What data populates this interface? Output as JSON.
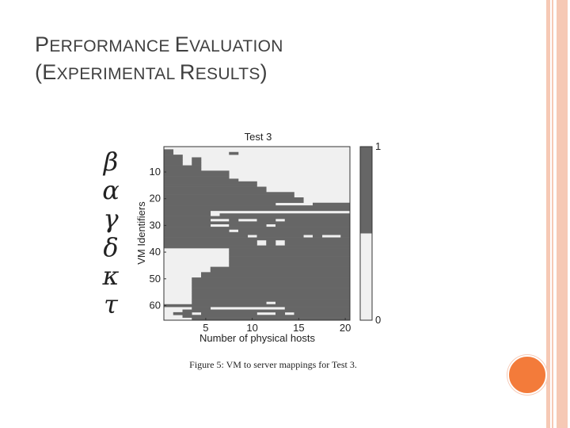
{
  "slide": {
    "title_line1_parts": [
      "P",
      "ERFORMANCE ",
      "E",
      "VALUATION"
    ],
    "title_line2_parts": [
      "(E",
      "XPERIMENTAL ",
      "R",
      "ESULTS",
      ")"
    ],
    "greek_symbols": [
      "β",
      "α",
      "γ",
      "δ",
      "κ",
      "τ"
    ],
    "caption": "Figure 5: VM to server mappings for Test 3.",
    "colors": {
      "accent_circle": "#f37b3a",
      "decor_stripes": "#f6c9b5",
      "title_text": "#404040"
    }
  },
  "chart_data": {
    "type": "heatmap",
    "title": "Test 3",
    "xlabel": "Number of physical hosts",
    "ylabel": "VM Identifiers",
    "x_ticks": [
      5,
      10,
      15,
      20
    ],
    "y_ticks": [
      10,
      20,
      30,
      40,
      50,
      60
    ],
    "x_range": [
      1,
      20
    ],
    "y_range": [
      1,
      65
    ],
    "colorbar_ticks": [
      1,
      0
    ],
    "colors": {
      "value_1": "#666666",
      "value_0": "#f0f0f0"
    },
    "note": "Cell value 1 = dark, 0 = light. Each row = VM id, each column = number of hosts.",
    "row_segments": [
      [
        [
          1,
          0,
          0,
          0,
          0,
          0,
          0,
          0,
          0,
          0,
          0,
          0,
          0,
          0,
          0,
          0,
          0,
          0,
          0,
          0
        ]
      ],
      "rows below use run-length encoding: list of [start_col, end_col, value]"
    ],
    "rows_rle": [
      [
        [
          1,
          20,
          0
        ]
      ],
      [
        [
          1,
          1,
          1
        ],
        [
          2,
          20,
          0
        ]
      ],
      [
        [
          1,
          1,
          1
        ],
        [
          2,
          7,
          0
        ],
        [
          8,
          8,
          1
        ],
        [
          9,
          20,
          0
        ]
      ],
      [
        [
          1,
          2,
          1
        ],
        [
          3,
          20,
          0
        ]
      ],
      [
        [
          1,
          2,
          1
        ],
        [
          3,
          3,
          0
        ],
        [
          4,
          4,
          1
        ],
        [
          5,
          20,
          0
        ]
      ],
      [
        [
          1,
          2,
          1
        ],
        [
          3,
          3,
          0
        ],
        [
          4,
          4,
          1
        ],
        [
          5,
          20,
          0
        ]
      ],
      [
        [
          1,
          2,
          1
        ],
        [
          3,
          3,
          0
        ],
        [
          4,
          4,
          1
        ],
        [
          5,
          20,
          0
        ]
      ],
      [
        [
          1,
          4,
          1
        ],
        [
          5,
          20,
          0
        ]
      ],
      [
        [
          1,
          4,
          1
        ],
        [
          5,
          20,
          0
        ]
      ],
      [
        [
          1,
          7,
          1
        ],
        [
          8,
          20,
          0
        ]
      ],
      [
        [
          1,
          7,
          1
        ],
        [
          8,
          20,
          0
        ]
      ],
      [
        [
          1,
          7,
          1
        ],
        [
          8,
          20,
          0
        ]
      ],
      [
        [
          1,
          8,
          1
        ],
        [
          9,
          20,
          0
        ]
      ],
      [
        [
          1,
          10,
          1
        ],
        [
          11,
          20,
          0
        ]
      ],
      [
        [
          1,
          10,
          1
        ],
        [
          11,
          20,
          0
        ]
      ],
      [
        [
          1,
          11,
          1
        ],
        [
          12,
          20,
          0
        ]
      ],
      [
        [
          1,
          11,
          1
        ],
        [
          12,
          20,
          0
        ]
      ],
      [
        [
          1,
          14,
          1
        ],
        [
          15,
          20,
          0
        ]
      ],
      [
        [
          1,
          14,
          1
        ],
        [
          15,
          20,
          0
        ]
      ],
      [
        [
          1,
          15,
          1
        ],
        [
          16,
          20,
          0
        ]
      ],
      [
        [
          1,
          15,
          1
        ],
        [
          16,
          20,
          0
        ]
      ],
      [
        [
          1,
          12,
          1
        ],
        [
          13,
          16,
          0
        ],
        [
          17,
          20,
          1
        ]
      ],
      [
        [
          1,
          20,
          1
        ]
      ],
      [
        [
          1,
          20,
          1
        ]
      ],
      [
        [
          1,
          3,
          1
        ],
        [
          4,
          20,
          0
        ],
        [
          4,
          5,
          1
        ]
      ],
      [
        [
          1,
          5,
          1
        ],
        [
          6,
          6,
          0
        ],
        [
          7,
          20,
          1
        ]
      ],
      [
        [
          1,
          20,
          1
        ]
      ],
      [
        [
          1,
          5,
          1
        ],
        [
          6,
          7,
          0
        ],
        [
          8,
          8,
          1
        ],
        [
          9,
          10,
          0
        ],
        [
          11,
          12,
          1
        ],
        [
          13,
          13,
          0
        ],
        [
          14,
          20,
          1
        ]
      ],
      [
        [
          1,
          20,
          1
        ]
      ],
      [
        [
          1,
          5,
          1
        ],
        [
          6,
          7,
          0
        ],
        [
          8,
          11,
          1
        ],
        [
          12,
          12,
          0
        ],
        [
          13,
          20,
          1
        ]
      ],
      [
        [
          1,
          20,
          1
        ]
      ],
      [
        [
          1,
          7,
          1
        ],
        [
          8,
          8,
          0
        ],
        [
          9,
          20,
          1
        ]
      ],
      [
        [
          1,
          20,
          1
        ]
      ],
      [
        [
          1,
          9,
          1
        ],
        [
          10,
          10,
          0
        ],
        [
          11,
          15,
          1
        ],
        [
          16,
          16,
          0
        ],
        [
          17,
          17,
          1
        ],
        [
          18,
          19,
          0
        ],
        [
          20,
          20,
          1
        ]
      ],
      [
        [
          1,
          20,
          1
        ]
      ],
      [
        [
          1,
          10,
          1
        ],
        [
          11,
          11,
          0
        ],
        [
          12,
          12,
          1
        ],
        [
          13,
          13,
          0
        ],
        [
          14,
          20,
          1
        ]
      ],
      [
        [
          1,
          10,
          1
        ],
        [
          11,
          11,
          0
        ],
        [
          12,
          12,
          1
        ],
        [
          13,
          13,
          0
        ],
        [
          14,
          20,
          1
        ]
      ],
      [
        [
          1,
          20,
          1
        ]
      ],
      [
        [
          1,
          7,
          0
        ],
        [
          8,
          20,
          1
        ]
      ],
      [
        [
          1,
          7,
          0
        ],
        [
          8,
          20,
          1
        ]
      ],
      [
        [
          1,
          7,
          0
        ],
        [
          8,
          20,
          1
        ]
      ],
      [
        [
          1,
          7,
          0
        ],
        [
          8,
          20,
          1
        ]
      ],
      [
        [
          1,
          7,
          0
        ],
        [
          8,
          20,
          1
        ]
      ],
      [
        [
          1,
          7,
          0
        ],
        [
          8,
          20,
          1
        ]
      ],
      [
        [
          1,
          7,
          0
        ],
        [
          8,
          20,
          1
        ]
      ],
      [
        [
          1,
          5,
          0
        ],
        [
          6,
          20,
          1
        ]
      ],
      [
        [
          1,
          5,
          0
        ],
        [
          6,
          20,
          1
        ]
      ],
      [
        [
          1,
          4,
          0
        ],
        [
          5,
          20,
          1
        ]
      ],
      [
        [
          1,
          4,
          0
        ],
        [
          5,
          20,
          1
        ]
      ],
      [
        [
          1,
          3,
          0
        ],
        [
          4,
          20,
          1
        ]
      ],
      [
        [
          1,
          3,
          0
        ],
        [
          4,
          20,
          1
        ]
      ],
      [
        [
          1,
          3,
          0
        ],
        [
          4,
          20,
          1
        ]
      ],
      [
        [
          1,
          3,
          0
        ],
        [
          4,
          20,
          1
        ]
      ],
      [
        [
          1,
          3,
          0
        ],
        [
          4,
          20,
          1
        ]
      ],
      [
        [
          1,
          3,
          0
        ],
        [
          4,
          20,
          1
        ]
      ],
      [
        [
          1,
          3,
          0
        ],
        [
          4,
          20,
          1
        ]
      ],
      [
        [
          1,
          3,
          0
        ],
        [
          4,
          20,
          1
        ]
      ],
      [
        [
          1,
          3,
          0
        ],
        [
          4,
          20,
          1
        ]
      ],
      [
        [
          1,
          3,
          0
        ],
        [
          4,
          11,
          1
        ],
        [
          12,
          12,
          0
        ],
        [
          13,
          20,
          1
        ]
      ],
      [
        [
          1,
          20,
          1
        ]
      ],
      [
        [
          1,
          3,
          0
        ],
        [
          4,
          5,
          1
        ],
        [
          6,
          13,
          0
        ],
        [
          14,
          20,
          1
        ]
      ],
      [
        [
          1,
          2,
          0
        ],
        [
          3,
          20,
          1
        ]
      ],
      [
        [
          1,
          1,
          0
        ],
        [
          2,
          3,
          1
        ],
        [
          4,
          4,
          0
        ],
        [
          5,
          10,
          1
        ],
        [
          11,
          12,
          0
        ],
        [
          13,
          13,
          1
        ],
        [
          14,
          14,
          0
        ],
        [
          15,
          20,
          1
        ]
      ],
      [
        [
          1,
          2,
          0
        ],
        [
          3,
          20,
          1
        ]
      ],
      [
        [
          1,
          3,
          0
        ],
        [
          4,
          20,
          1
        ]
      ]
    ]
  }
}
